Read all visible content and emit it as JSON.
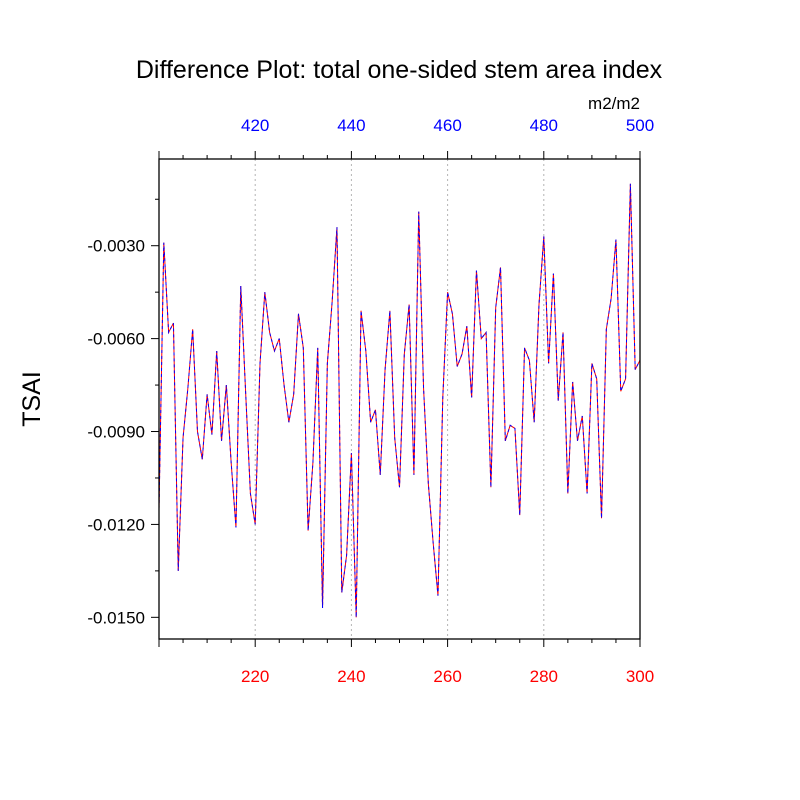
{
  "chart_data": {
    "type": "line",
    "title": "Difference Plot: total one-sided stem area index",
    "units_label": "m2/m2",
    "ylabel": "TSAI",
    "xlim_bottom": [
      200,
      300
    ],
    "xlim_top": [
      400,
      500
    ],
    "ylim": [
      -0.0157,
      -0.0002
    ],
    "x_ticks_bottom": [
      "220",
      "240",
      "260",
      "280",
      "300"
    ],
    "x_ticks_bottom_values": [
      220,
      240,
      260,
      280,
      300
    ],
    "x_ticks_top": [
      "420",
      "440",
      "460",
      "480",
      "500"
    ],
    "x_ticks_top_values": [
      420,
      440,
      460,
      480,
      500
    ],
    "y_ticks": [
      "-0.0030",
      "-0.0060",
      "-0.0090",
      "-0.0120",
      "-0.0150"
    ],
    "y_tick_values": [
      -0.003,
      -0.006,
      -0.009,
      -0.012,
      -0.015
    ],
    "vertical_gridlines_at": [
      220,
      240,
      260,
      280
    ],
    "colors": {
      "bottom_axis": "#ff0000",
      "top_axis": "#0000ff",
      "line_primary": "#ff0000",
      "line_overlay": "#0000ff",
      "grid": "#b4b4b4"
    },
    "series": [
      {
        "x": [
          200,
          201,
          202,
          203,
          204,
          205,
          206,
          207,
          208,
          209,
          210,
          211,
          212,
          213,
          214,
          215,
          216,
          217,
          218,
          219,
          220,
          221,
          222,
          223,
          224,
          225,
          226,
          227,
          228,
          229,
          230,
          231,
          232,
          233,
          234,
          235,
          236,
          237,
          238,
          239,
          240,
          241,
          242,
          243,
          244,
          245,
          246,
          247,
          248,
          249,
          250,
          251,
          252,
          253,
          254,
          255,
          256,
          257,
          258,
          259,
          260,
          261,
          262,
          263,
          264,
          265,
          266,
          267,
          268,
          269,
          270,
          271,
          272,
          273,
          274,
          275,
          276,
          277,
          278,
          279,
          280,
          281,
          282,
          283,
          284,
          285,
          286,
          287,
          288,
          289,
          290,
          291,
          292,
          293,
          294,
          295,
          296,
          297,
          298,
          299,
          300
        ],
        "y": [
          -0.0115,
          -0.0029,
          -0.0058,
          -0.0055,
          -0.0135,
          -0.0092,
          -0.0076,
          -0.0057,
          -0.009,
          -0.0099,
          -0.0078,
          -0.0091,
          -0.0064,
          -0.0093,
          -0.0075,
          -0.01,
          -0.0121,
          -0.0043,
          -0.0077,
          -0.011,
          -0.012,
          -0.0068,
          -0.0045,
          -0.0058,
          -0.0064,
          -0.006,
          -0.0075,
          -0.0087,
          -0.0078,
          -0.0052,
          -0.0063,
          -0.0122,
          -0.01,
          -0.0063,
          -0.0147,
          -0.0068,
          -0.0048,
          -0.0024,
          -0.0142,
          -0.013,
          -0.0097,
          -0.015,
          -0.0051,
          -0.0064,
          -0.0087,
          -0.0083,
          -0.0104,
          -0.007,
          -0.0051,
          -0.0092,
          -0.0108,
          -0.0065,
          -0.0049,
          -0.0104,
          -0.0019,
          -0.0076,
          -0.0107,
          -0.0126,
          -0.0143,
          -0.0079,
          -0.0045,
          -0.0052,
          -0.0069,
          -0.0065,
          -0.0056,
          -0.0079,
          -0.0038,
          -0.006,
          -0.0058,
          -0.0108,
          -0.005,
          -0.0037,
          -0.0093,
          -0.0088,
          -0.0089,
          -0.0117,
          -0.0063,
          -0.0067,
          -0.0087,
          -0.0049,
          -0.0027,
          -0.0068,
          -0.0039,
          -0.008,
          -0.0058,
          -0.011,
          -0.0074,
          -0.0093,
          -0.0085,
          -0.011,
          -0.0068,
          -0.0073,
          -0.0118,
          -0.0057,
          -0.0047,
          -0.0028,
          -0.0077,
          -0.0073,
          -0.001,
          -0.007,
          -0.0067
        ]
      }
    ]
  }
}
